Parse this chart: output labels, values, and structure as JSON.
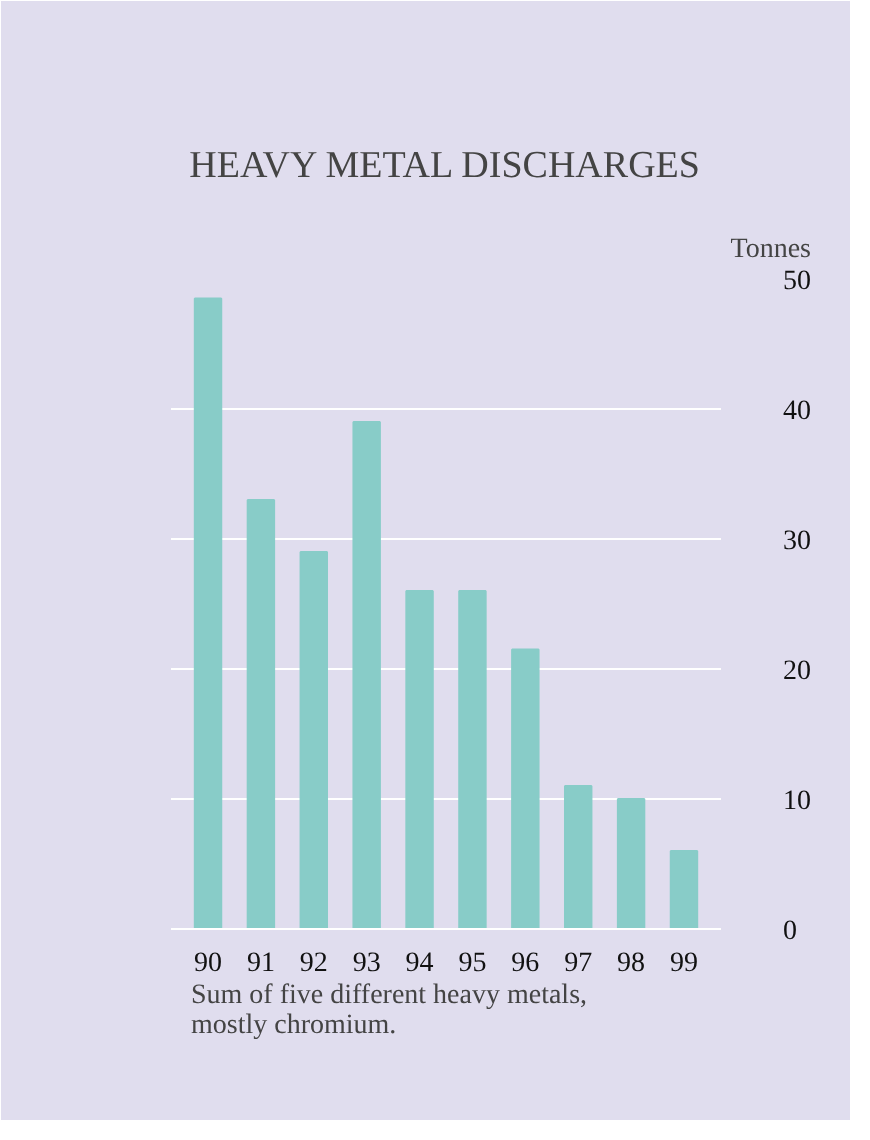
{
  "chart_data": {
    "type": "bar",
    "title": "HEAVY METAL DISCHARGES",
    "ylabel": "Tonnes",
    "categories": [
      "90",
      "91",
      "92",
      "93",
      "94",
      "95",
      "96",
      "97",
      "98",
      "99"
    ],
    "values": [
      48.5,
      33,
      29,
      39,
      26,
      26,
      21.5,
      11,
      10,
      6
    ],
    "color": "#88ccc8",
    "ylim": [
      0,
      50
    ],
    "yticks": [
      0,
      10,
      20,
      30,
      40,
      50
    ],
    "grid": "y",
    "annotations": [
      "Sum of five different heavy metals, mostly chromium."
    ]
  }
}
